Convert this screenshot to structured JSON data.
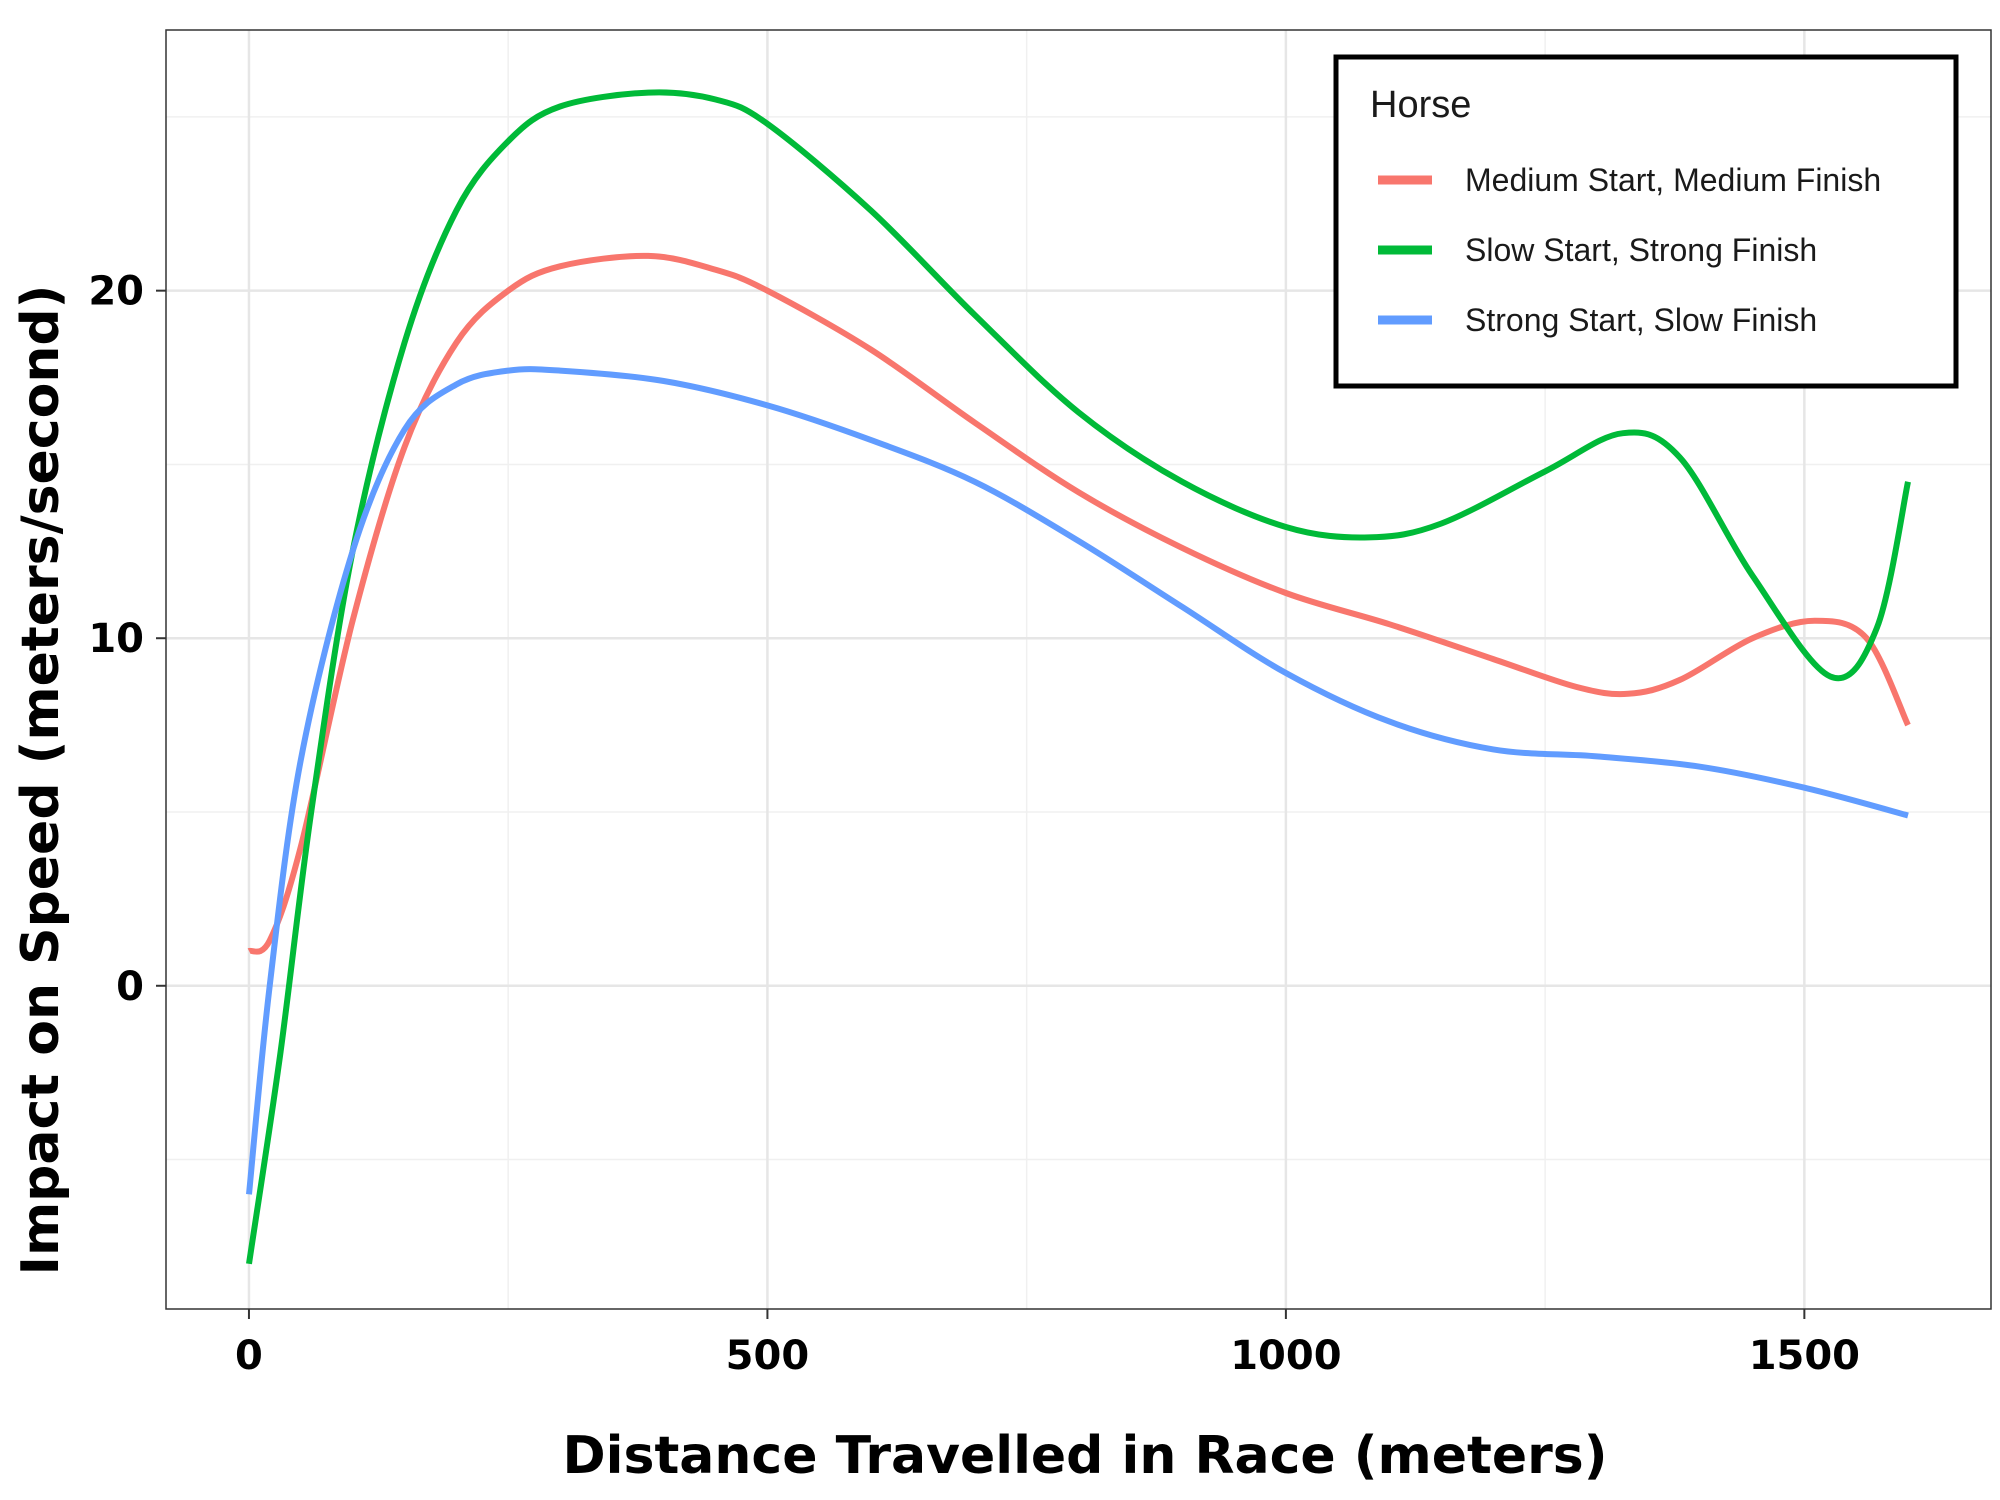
{
  "chart_data": {
    "type": "line",
    "title": "",
    "xlabel": "Distance Travelled in Race (meters)",
    "ylabel": "Impact on Speed (meters/second)",
    "xlim": [
      -80,
      1680
    ],
    "ylim": [
      -9.3,
      27.5
    ],
    "xticks": [
      0,
      500,
      1000,
      1500
    ],
    "xtick_labels": [
      "0",
      "500",
      "1000",
      "1500"
    ],
    "yticks": [
      0,
      10,
      20
    ],
    "ytick_labels": [
      "0",
      "10",
      "20"
    ],
    "grid": true,
    "legend": {
      "title": "Horse",
      "position": "top-right"
    },
    "series": [
      {
        "name": "Medium Start, Medium Finish",
        "color": "#F8766D",
        "points": [
          [
            0,
            1.0
          ],
          [
            20,
            1.3
          ],
          [
            50,
            4.0
          ],
          [
            100,
            10.5
          ],
          [
            150,
            15.5
          ],
          [
            200,
            18.5
          ],
          [
            250,
            20.0
          ],
          [
            300,
            20.7
          ],
          [
            385,
            21.0
          ],
          [
            450,
            20.6
          ],
          [
            500,
            20.0
          ],
          [
            600,
            18.3
          ],
          [
            700,
            16.2
          ],
          [
            800,
            14.2
          ],
          [
            900,
            12.6
          ],
          [
            1000,
            11.3
          ],
          [
            1100,
            10.4
          ],
          [
            1200,
            9.4
          ],
          [
            1280,
            8.6
          ],
          [
            1330,
            8.4
          ],
          [
            1380,
            8.8
          ],
          [
            1450,
            10.0
          ],
          [
            1510,
            10.5
          ],
          [
            1560,
            10.0
          ],
          [
            1600,
            7.5
          ]
        ]
      },
      {
        "name": "Slow Start, Strong Finish",
        "color": "#00BA38",
        "points": [
          [
            0,
            -8.0
          ],
          [
            30,
            -2.0
          ],
          [
            60,
            5.0
          ],
          [
            100,
            12.5
          ],
          [
            150,
            18.5
          ],
          [
            200,
            22.3
          ],
          [
            250,
            24.3
          ],
          [
            300,
            25.3
          ],
          [
            385,
            25.7
          ],
          [
            450,
            25.5
          ],
          [
            500,
            24.8
          ],
          [
            600,
            22.3
          ],
          [
            700,
            19.3
          ],
          [
            800,
            16.5
          ],
          [
            900,
            14.5
          ],
          [
            1000,
            13.2
          ],
          [
            1080,
            12.9
          ],
          [
            1150,
            13.3
          ],
          [
            1250,
            14.8
          ],
          [
            1325,
            15.9
          ],
          [
            1380,
            15.2
          ],
          [
            1450,
            11.8
          ],
          [
            1525,
            8.9
          ],
          [
            1570,
            10.3
          ],
          [
            1600,
            14.5
          ]
        ]
      },
      {
        "name": "Strong Start, Slow Finish",
        "color": "#619CFF",
        "points": [
          [
            0,
            -6.0
          ],
          [
            20,
            0.0
          ],
          [
            50,
            6.5
          ],
          [
            100,
            12.5
          ],
          [
            150,
            16.0
          ],
          [
            200,
            17.3
          ],
          [
            250,
            17.7
          ],
          [
            300,
            17.7
          ],
          [
            400,
            17.4
          ],
          [
            500,
            16.7
          ],
          [
            600,
            15.7
          ],
          [
            700,
            14.5
          ],
          [
            800,
            12.8
          ],
          [
            900,
            10.9
          ],
          [
            1000,
            9.0
          ],
          [
            1100,
            7.6
          ],
          [
            1200,
            6.8
          ],
          [
            1300,
            6.6
          ],
          [
            1400,
            6.3
          ],
          [
            1500,
            5.7
          ],
          [
            1600,
            4.9
          ]
        ]
      }
    ]
  }
}
